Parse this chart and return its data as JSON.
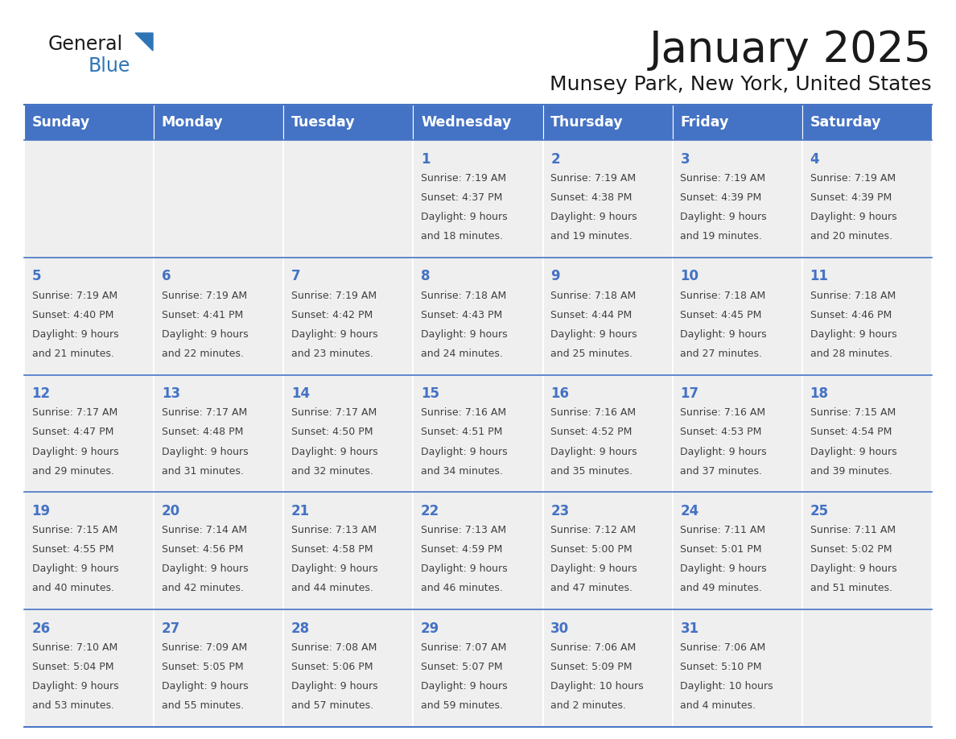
{
  "title": "January 2025",
  "subtitle": "Munsey Park, New York, United States",
  "days_of_week": [
    "Sunday",
    "Monday",
    "Tuesday",
    "Wednesday",
    "Thursday",
    "Friday",
    "Saturday"
  ],
  "header_bg": "#4472C4",
  "header_text": "#FFFFFF",
  "cell_bg": "#EFEFEF",
  "border_color": "#4472C4",
  "text_color": "#404040",
  "title_color": "#1a1a1a",
  "logo_general_color": "#1a1a1a",
  "logo_blue_color": "#2E75B6",
  "calendar_data": [
    [
      {
        "day": "",
        "line1": "",
        "line2": "",
        "line3": "",
        "line4": ""
      },
      {
        "day": "",
        "line1": "",
        "line2": "",
        "line3": "",
        "line4": ""
      },
      {
        "day": "",
        "line1": "",
        "line2": "",
        "line3": "",
        "line4": ""
      },
      {
        "day": "1",
        "line1": "Sunrise: 7:19 AM",
        "line2": "Sunset: 4:37 PM",
        "line3": "Daylight: 9 hours",
        "line4": "and 18 minutes."
      },
      {
        "day": "2",
        "line1": "Sunrise: 7:19 AM",
        "line2": "Sunset: 4:38 PM",
        "line3": "Daylight: 9 hours",
        "line4": "and 19 minutes."
      },
      {
        "day": "3",
        "line1": "Sunrise: 7:19 AM",
        "line2": "Sunset: 4:39 PM",
        "line3": "Daylight: 9 hours",
        "line4": "and 19 minutes."
      },
      {
        "day": "4",
        "line1": "Sunrise: 7:19 AM",
        "line2": "Sunset: 4:39 PM",
        "line3": "Daylight: 9 hours",
        "line4": "and 20 minutes."
      }
    ],
    [
      {
        "day": "5",
        "line1": "Sunrise: 7:19 AM",
        "line2": "Sunset: 4:40 PM",
        "line3": "Daylight: 9 hours",
        "line4": "and 21 minutes."
      },
      {
        "day": "6",
        "line1": "Sunrise: 7:19 AM",
        "line2": "Sunset: 4:41 PM",
        "line3": "Daylight: 9 hours",
        "line4": "and 22 minutes."
      },
      {
        "day": "7",
        "line1": "Sunrise: 7:19 AM",
        "line2": "Sunset: 4:42 PM",
        "line3": "Daylight: 9 hours",
        "line4": "and 23 minutes."
      },
      {
        "day": "8",
        "line1": "Sunrise: 7:18 AM",
        "line2": "Sunset: 4:43 PM",
        "line3": "Daylight: 9 hours",
        "line4": "and 24 minutes."
      },
      {
        "day": "9",
        "line1": "Sunrise: 7:18 AM",
        "line2": "Sunset: 4:44 PM",
        "line3": "Daylight: 9 hours",
        "line4": "and 25 minutes."
      },
      {
        "day": "10",
        "line1": "Sunrise: 7:18 AM",
        "line2": "Sunset: 4:45 PM",
        "line3": "Daylight: 9 hours",
        "line4": "and 27 minutes."
      },
      {
        "day": "11",
        "line1": "Sunrise: 7:18 AM",
        "line2": "Sunset: 4:46 PM",
        "line3": "Daylight: 9 hours",
        "line4": "and 28 minutes."
      }
    ],
    [
      {
        "day": "12",
        "line1": "Sunrise: 7:17 AM",
        "line2": "Sunset: 4:47 PM",
        "line3": "Daylight: 9 hours",
        "line4": "and 29 minutes."
      },
      {
        "day": "13",
        "line1": "Sunrise: 7:17 AM",
        "line2": "Sunset: 4:48 PM",
        "line3": "Daylight: 9 hours",
        "line4": "and 31 minutes."
      },
      {
        "day": "14",
        "line1": "Sunrise: 7:17 AM",
        "line2": "Sunset: 4:50 PM",
        "line3": "Daylight: 9 hours",
        "line4": "and 32 minutes."
      },
      {
        "day": "15",
        "line1": "Sunrise: 7:16 AM",
        "line2": "Sunset: 4:51 PM",
        "line3": "Daylight: 9 hours",
        "line4": "and 34 minutes."
      },
      {
        "day": "16",
        "line1": "Sunrise: 7:16 AM",
        "line2": "Sunset: 4:52 PM",
        "line3": "Daylight: 9 hours",
        "line4": "and 35 minutes."
      },
      {
        "day": "17",
        "line1": "Sunrise: 7:16 AM",
        "line2": "Sunset: 4:53 PM",
        "line3": "Daylight: 9 hours",
        "line4": "and 37 minutes."
      },
      {
        "day": "18",
        "line1": "Sunrise: 7:15 AM",
        "line2": "Sunset: 4:54 PM",
        "line3": "Daylight: 9 hours",
        "line4": "and 39 minutes."
      }
    ],
    [
      {
        "day": "19",
        "line1": "Sunrise: 7:15 AM",
        "line2": "Sunset: 4:55 PM",
        "line3": "Daylight: 9 hours",
        "line4": "and 40 minutes."
      },
      {
        "day": "20",
        "line1": "Sunrise: 7:14 AM",
        "line2": "Sunset: 4:56 PM",
        "line3": "Daylight: 9 hours",
        "line4": "and 42 minutes."
      },
      {
        "day": "21",
        "line1": "Sunrise: 7:13 AM",
        "line2": "Sunset: 4:58 PM",
        "line3": "Daylight: 9 hours",
        "line4": "and 44 minutes."
      },
      {
        "day": "22",
        "line1": "Sunrise: 7:13 AM",
        "line2": "Sunset: 4:59 PM",
        "line3": "Daylight: 9 hours",
        "line4": "and 46 minutes."
      },
      {
        "day": "23",
        "line1": "Sunrise: 7:12 AM",
        "line2": "Sunset: 5:00 PM",
        "line3": "Daylight: 9 hours",
        "line4": "and 47 minutes."
      },
      {
        "day": "24",
        "line1": "Sunrise: 7:11 AM",
        "line2": "Sunset: 5:01 PM",
        "line3": "Daylight: 9 hours",
        "line4": "and 49 minutes."
      },
      {
        "day": "25",
        "line1": "Sunrise: 7:11 AM",
        "line2": "Sunset: 5:02 PM",
        "line3": "Daylight: 9 hours",
        "line4": "and 51 minutes."
      }
    ],
    [
      {
        "day": "26",
        "line1": "Sunrise: 7:10 AM",
        "line2": "Sunset: 5:04 PM",
        "line3": "Daylight: 9 hours",
        "line4": "and 53 minutes."
      },
      {
        "day": "27",
        "line1": "Sunrise: 7:09 AM",
        "line2": "Sunset: 5:05 PM",
        "line3": "Daylight: 9 hours",
        "line4": "and 55 minutes."
      },
      {
        "day": "28",
        "line1": "Sunrise: 7:08 AM",
        "line2": "Sunset: 5:06 PM",
        "line3": "Daylight: 9 hours",
        "line4": "and 57 minutes."
      },
      {
        "day": "29",
        "line1": "Sunrise: 7:07 AM",
        "line2": "Sunset: 5:07 PM",
        "line3": "Daylight: 9 hours",
        "line4": "and 59 minutes."
      },
      {
        "day": "30",
        "line1": "Sunrise: 7:06 AM",
        "line2": "Sunset: 5:09 PM",
        "line3": "Daylight: 10 hours",
        "line4": "and 2 minutes."
      },
      {
        "day": "31",
        "line1": "Sunrise: 7:06 AM",
        "line2": "Sunset: 5:10 PM",
        "line3": "Daylight: 10 hours",
        "line4": "and 4 minutes."
      },
      {
        "day": "",
        "line1": "",
        "line2": "",
        "line3": "",
        "line4": ""
      }
    ]
  ]
}
